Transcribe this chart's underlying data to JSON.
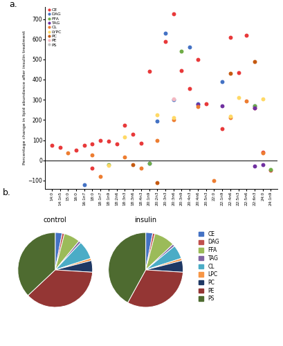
{
  "scatter_categories": [
    "CE",
    "DAG",
    "FFA",
    "TAG",
    "CL",
    "LYPC",
    "PC",
    "PE",
    "PS"
  ],
  "scatter_colors": {
    "CE": "#e8393a",
    "DAG": "#4472c4",
    "FFA": "#70ad47",
    "TAG": "#7030a0",
    "CL": "#ed7d31",
    "LYPC": "#ffd966",
    "PC": "#c55a11",
    "PE": "#f4b8c1",
    "PS": "#c0c0c0"
  },
  "x_labels": [
    "14:0",
    "14:1n5",
    "15:0",
    "16:0",
    "16:1n7",
    "18:0",
    "18:1n7",
    "18:1n9",
    "18:2n6",
    "18:3n3",
    "18:3n6",
    "18:4n3",
    "20:1n9",
    "20:2n3",
    "20:3n3",
    "20:3n6",
    "20:3n9",
    "20:4n3",
    "20:4n6",
    "20:5n3",
    "22:0",
    "22:1n9",
    "22:4n6",
    "22:5n3",
    "22:5n6",
    "22:6n3",
    "24:0",
    "24:1n9"
  ],
  "scatter_data": {
    "CE": [
      75,
      65,
      null,
      50,
      75,
      80,
      100,
      95,
      80,
      175,
      130,
      85,
      440,
      null,
      590,
      725,
      445,
      355,
      500,
      280,
      null,
      155,
      610,
      435,
      620,
      260,
      40,
      null
    ],
    "DAG": [
      null,
      null,
      null,
      null,
      null,
      null,
      null,
      null,
      null,
      null,
      null,
      null,
      null,
      195,
      630,
      300,
      null,
      560,
      280,
      null,
      null,
      390,
      null,
      null,
      null,
      270,
      null,
      null
    ],
    "FFA": [
      null,
      null,
      null,
      null,
      null,
      null,
      null,
      null,
      null,
      null,
      null,
      null,
      null,
      null,
      null,
      null,
      540,
      null,
      null,
      null,
      null,
      null,
      null,
      null,
      null,
      270,
      null,
      null
    ],
    "TAG": [
      null,
      null,
      null,
      null,
      null,
      null,
      null,
      null,
      null,
      null,
      null,
      null,
      null,
      null,
      null,
      null,
      null,
      null,
      275,
      null,
      null,
      270,
      null,
      null,
      null,
      260,
      null,
      null
    ],
    "CL": [
      null,
      null,
      35,
      null,
      null,
      25,
      null,
      null,
      null,
      15,
      null,
      null,
      null,
      100,
      null,
      200,
      null,
      null,
      265,
      null,
      null,
      null,
      210,
      null,
      295,
      null,
      35,
      null
    ],
    "LYPC": [
      null,
      null,
      null,
      null,
      null,
      null,
      null,
      null,
      null,
      115,
      null,
      null,
      null,
      225,
      null,
      210,
      null,
      null,
      null,
      null,
      null,
      null,
      220,
      310,
      null,
      null,
      305,
      null
    ],
    "PC": [
      null,
      null,
      null,
      null,
      null,
      null,
      null,
      null,
      null,
      null,
      null,
      null,
      null,
      null,
      null,
      null,
      null,
      null,
      null,
      null,
      null,
      null,
      430,
      null,
      null,
      490,
      null,
      null
    ],
    "PE": [
      null,
      null,
      null,
      null,
      null,
      null,
      null,
      null,
      null,
      null,
      null,
      null,
      null,
      null,
      null,
      305,
      null,
      null,
      null,
      null,
      null,
      null,
      null,
      null,
      null,
      null,
      null,
      null
    ],
    "PS": [
      null,
      null,
      null,
      null,
      null,
      null,
      null,
      null,
      null,
      null,
      null,
      null,
      null,
      null,
      null,
      null,
      null,
      null,
      null,
      null,
      null,
      null,
      null,
      null,
      null,
      null,
      null,
      null
    ]
  },
  "negative_data": {
    "CE": [
      null,
      null,
      null,
      null,
      null,
      -40,
      null,
      null,
      null,
      null,
      null,
      null,
      null,
      null,
      null,
      null,
      null,
      null,
      null,
      null,
      null,
      null,
      null,
      null,
      null,
      null,
      null,
      -50
    ],
    "DAG": [
      null,
      null,
      null,
      null,
      -120,
      null,
      null,
      null,
      null,
      null,
      null,
      null,
      -15,
      null,
      null,
      null,
      null,
      null,
      null,
      null,
      null,
      null,
      null,
      null,
      null,
      null,
      null,
      null
    ],
    "FFA": [
      null,
      null,
      null,
      null,
      null,
      null,
      null,
      -20,
      null,
      null,
      null,
      null,
      -15,
      null,
      null,
      null,
      null,
      null,
      null,
      null,
      null,
      null,
      null,
      null,
      null,
      null,
      null,
      -45
    ],
    "TAG": [
      null,
      null,
      null,
      null,
      null,
      null,
      null,
      null,
      null,
      null,
      null,
      null,
      null,
      null,
      null,
      null,
      null,
      null,
      null,
      null,
      null,
      null,
      null,
      null,
      null,
      -30,
      -20,
      null
    ],
    "CL": [
      null,
      null,
      null,
      null,
      null,
      null,
      -80,
      null,
      null,
      null,
      null,
      -40,
      null,
      null,
      null,
      null,
      null,
      null,
      null,
      null,
      -100,
      null,
      null,
      null,
      null,
      null,
      null,
      null
    ],
    "LYPC": [
      null,
      null,
      null,
      null,
      null,
      null,
      null,
      -25,
      null,
      null,
      null,
      null,
      null,
      null,
      null,
      null,
      null,
      null,
      null,
      null,
      null,
      null,
      null,
      null,
      null,
      null,
      null,
      null
    ],
    "PC": [
      null,
      null,
      null,
      null,
      null,
      null,
      null,
      null,
      null,
      null,
      -20,
      null,
      null,
      -110,
      null,
      null,
      null,
      null,
      null,
      null,
      null,
      null,
      null,
      null,
      null,
      null,
      null,
      null
    ],
    "PE": [
      null,
      null,
      null,
      null,
      null,
      null,
      null,
      null,
      null,
      null,
      null,
      null,
      null,
      null,
      null,
      null,
      null,
      null,
      null,
      null,
      null,
      null,
      null,
      null,
      null,
      null,
      null,
      null
    ],
    "PS": [
      null,
      null,
      null,
      null,
      null,
      null,
      null,
      null,
      null,
      null,
      null,
      null,
      null,
      null,
      null,
      null,
      null,
      null,
      null,
      null,
      null,
      null,
      null,
      null,
      null,
      null,
      null,
      null
    ]
  },
  "pie_control": [
    3,
    1,
    7,
    1,
    8,
    1,
    5,
    37,
    37
  ],
  "pie_insulin": [
    3,
    1,
    9,
    1,
    6,
    1,
    5,
    32,
    42
  ],
  "pie_labels": [
    "CE",
    "DAG",
    "FFA",
    "TAG",
    "CL",
    "LPC",
    "PC",
    "PE",
    "PS"
  ],
  "pie_colors": [
    "#4472c4",
    "#c0504d",
    "#9bbb59",
    "#8064a2",
    "#4bacc6",
    "#f79646",
    "#1f3864",
    "#943634",
    "#4e6b30"
  ]
}
